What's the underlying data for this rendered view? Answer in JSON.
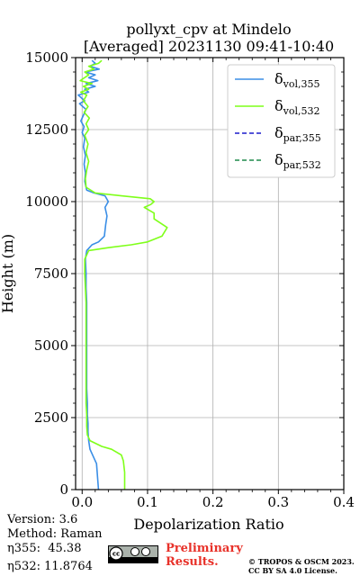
{
  "chart_data": {
    "type": "line",
    "title": [
      "pollyxt_cpv at Mindelo",
      "[Averaged] 20231130 09:41-10:40"
    ],
    "xlabel": "Depolarization Ratio",
    "ylabel": "Height (m)",
    "xlim": [
      -0.01,
      0.4
    ],
    "ylim": [
      0,
      15000
    ],
    "xticks": [
      "0.0",
      "0.1",
      "0.2",
      "0.3",
      "0.4"
    ],
    "xtick_values": [
      0.0,
      0.1,
      0.2,
      0.3,
      0.4
    ],
    "yticks": [
      "0",
      "2500",
      "5000",
      "7500",
      "10000",
      "12500",
      "15000"
    ],
    "ytick_values": [
      0,
      2500,
      5000,
      7500,
      10000,
      12500,
      15000
    ],
    "grid": true,
    "legend_position": "top-right",
    "series": [
      {
        "name": "δvol,355",
        "name_main": "δ",
        "name_sub": "vol,355",
        "color": "#3a8ee6",
        "dash": "solid",
        "points": [
          [
            0.025,
            0
          ],
          [
            0.024,
            300
          ],
          [
            0.023,
            600
          ],
          [
            0.022,
            900
          ],
          [
            0.018,
            1100
          ],
          [
            0.012,
            1400
          ],
          [
            0.01,
            1700
          ],
          [
            0.009,
            2000
          ],
          [
            0.009,
            2300
          ],
          [
            0.008,
            2600
          ],
          [
            0.008,
            3000
          ],
          [
            0.007,
            3500
          ],
          [
            0.007,
            4000
          ],
          [
            0.007,
            4500
          ],
          [
            0.007,
            5000
          ],
          [
            0.007,
            5500
          ],
          [
            0.007,
            6000
          ],
          [
            0.007,
            6500
          ],
          [
            0.006,
            7000
          ],
          [
            0.006,
            7500
          ],
          [
            0.005,
            8000
          ],
          [
            0.007,
            8300
          ],
          [
            0.015,
            8500
          ],
          [
            0.025,
            8600
          ],
          [
            0.034,
            8800
          ],
          [
            0.036,
            9200
          ],
          [
            0.038,
            9500
          ],
          [
            0.035,
            9800
          ],
          [
            0.04,
            10000
          ],
          [
            0.035,
            10200
          ],
          [
            0.018,
            10300
          ],
          [
            0.007,
            10400
          ],
          [
            0.004,
            10700
          ],
          [
            0.005,
            11000
          ],
          [
            0.003,
            11300
          ],
          [
            0.005,
            11600
          ],
          [
            0.002,
            11900
          ],
          [
            0.004,
            12200
          ],
          [
            0.0,
            12400
          ],
          [
            0.003,
            12600
          ],
          [
            -0.002,
            12800
          ],
          [
            0.002,
            13000
          ],
          [
            0.006,
            13200
          ],
          [
            -0.004,
            13400
          ],
          [
            0.004,
            13500
          ],
          [
            -0.006,
            13700
          ],
          [
            0.01,
            13800
          ],
          [
            0.004,
            13900
          ],
          [
            0.02,
            14000
          ],
          [
            0.006,
            14100
          ],
          [
            0.024,
            14200
          ],
          [
            0.01,
            14300
          ],
          [
            0.02,
            14400
          ],
          [
            0.005,
            14500
          ],
          [
            0.026,
            14600
          ],
          [
            0.012,
            14700
          ],
          [
            0.02,
            14800
          ],
          [
            0.015,
            14900
          ]
        ]
      },
      {
        "name": "δvol,532",
        "name_main": "δ",
        "name_sub": "vol,532",
        "color": "#7fff1a",
        "dash": "solid",
        "points": [
          [
            0.065,
            0
          ],
          [
            0.065,
            300
          ],
          [
            0.065,
            600
          ],
          [
            0.063,
            1000
          ],
          [
            0.06,
            1200
          ],
          [
            0.045,
            1400
          ],
          [
            0.03,
            1500
          ],
          [
            0.012,
            1700
          ],
          [
            0.008,
            1900
          ],
          [
            0.007,
            2200
          ],
          [
            0.007,
            2600
          ],
          [
            0.006,
            3000
          ],
          [
            0.006,
            3500
          ],
          [
            0.006,
            4000
          ],
          [
            0.006,
            4500
          ],
          [
            0.006,
            5000
          ],
          [
            0.006,
            5500
          ],
          [
            0.006,
            6000
          ],
          [
            0.006,
            6500
          ],
          [
            0.005,
            7000
          ],
          [
            0.004,
            7500
          ],
          [
            0.004,
            8000
          ],
          [
            0.01,
            8300
          ],
          [
            0.04,
            8400
          ],
          [
            0.075,
            8500
          ],
          [
            0.1,
            8600
          ],
          [
            0.122,
            8800
          ],
          [
            0.13,
            9100
          ],
          [
            0.11,
            9400
          ],
          [
            0.11,
            9600
          ],
          [
            0.095,
            9800
          ],
          [
            0.105,
            9900
          ],
          [
            0.11,
            10000
          ],
          [
            0.104,
            10100
          ],
          [
            0.06,
            10200
          ],
          [
            0.02,
            10300
          ],
          [
            0.006,
            10500
          ],
          [
            0.005,
            10800
          ],
          [
            0.007,
            11100
          ],
          [
            0.01,
            11400
          ],
          [
            0.006,
            11700
          ],
          [
            0.009,
            12000
          ],
          [
            0.004,
            12300
          ],
          [
            0.01,
            12500
          ],
          [
            0.006,
            12700
          ],
          [
            0.011,
            12900
          ],
          [
            0.003,
            13100
          ],
          [
            0.009,
            13300
          ],
          [
            0.002,
            13500
          ],
          [
            0.007,
            13700
          ],
          [
            -0.002,
            13800
          ],
          [
            0.01,
            13900
          ],
          [
            0.002,
            14000
          ],
          [
            0.015,
            14100
          ],
          [
            -0.003,
            14200
          ],
          [
            0.01,
            14400
          ],
          [
            0.004,
            14500
          ],
          [
            0.018,
            14600
          ],
          [
            0.01,
            14700
          ],
          [
            0.025,
            14800
          ],
          [
            0.03,
            14900
          ]
        ]
      },
      {
        "name": "δpar,355",
        "name_main": "δ",
        "name_sub": "par,355",
        "color": "#1c1ccc",
        "dash": "dashed",
        "points": []
      },
      {
        "name": "δpar,532",
        "name_main": "δ",
        "name_sub": "par,532",
        "color": "#1f8a4c",
        "dash": "dashed",
        "points": []
      }
    ]
  },
  "footer": {
    "version": "Version: 3.6",
    "method": "Method: Raman",
    "eta355": "η355:  45.38",
    "eta532": "η532: 11.8764",
    "preliminary": "Preliminary",
    "results": "Results.",
    "copyright": "© TROPOS & OSCM 2023.",
    "license": "CC BY SA 4.0 License.",
    "cc_logo": "cc-by-sa-badge"
  }
}
